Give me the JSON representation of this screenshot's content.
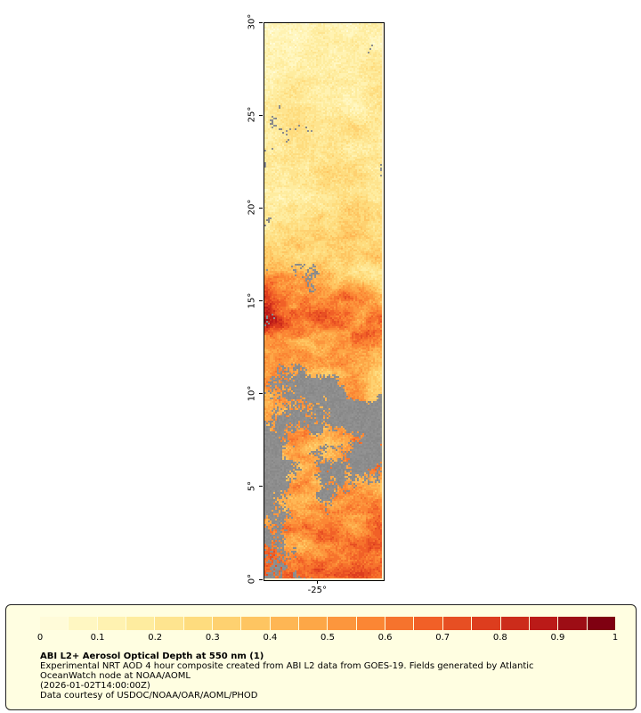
{
  "page": {
    "background": "#ffffff"
  },
  "map": {
    "lat_range": [
      0,
      30
    ],
    "lat_ticks": [
      {
        "label": "30°",
        "lat": 30
      },
      {
        "label": "25°",
        "lat": 25
      },
      {
        "label": "20°",
        "lat": 20
      },
      {
        "label": "15°",
        "lat": 15
      },
      {
        "label": "10°",
        "lat": 10
      },
      {
        "label": "5°",
        "lat": 5
      },
      {
        "label": "0°",
        "lat": 0
      }
    ],
    "lon_ticks": [
      {
        "label": "-25°",
        "frac": 0.45
      }
    ]
  },
  "legend": {
    "title": "ABI L2+ Aerosol Optical Depth at 550 nm (1)",
    "lines": [
      "Experimental NRT AOD 4 hour composite created from ABI L2 data from GOES-19. Fields generated by Atlantic",
      "OceanWatch node at NOAA/AOML",
      "(2026-01-02T14:00:00Z)",
      "Data courtesy of USDOC/NOAA/OAR/AOML/PHOD"
    ],
    "background": "#fffee1",
    "colorbar": {
      "ticks": [
        "0",
        "0.1",
        "0.2",
        "0.3",
        "0.4",
        "0.5",
        "0.6",
        "0.7",
        "0.8",
        "0.9",
        "1"
      ],
      "min": 0,
      "max": 1,
      "segments": 20
    }
  },
  "chart_data": {
    "type": "heatmap",
    "title": "ABI L2+ Aerosol Optical Depth at 550 nm (1)",
    "variable": "Aerosol Optical Depth at 550 nm",
    "value_range": [
      0,
      1
    ],
    "lat_range": [
      0,
      30
    ],
    "lon_tick": -25,
    "missing_color": "#8d8d8d",
    "colormap": [
      {
        "v": 0.0,
        "color": "#fffff0"
      },
      {
        "v": 0.1,
        "color": "#fff7c2"
      },
      {
        "v": 0.2,
        "color": "#feec9f"
      },
      {
        "v": 0.3,
        "color": "#fedc7e"
      },
      {
        "v": 0.4,
        "color": "#fec561"
      },
      {
        "v": 0.5,
        "color": "#fda747"
      },
      {
        "v": 0.6,
        "color": "#fb8634"
      },
      {
        "v": 0.7,
        "color": "#f16027"
      },
      {
        "v": 0.8,
        "color": "#dd3d1e"
      },
      {
        "v": 0.9,
        "color": "#bb1a18"
      },
      {
        "v": 1.0,
        "color": "#7f0011"
      }
    ],
    "bands": [
      {
        "lat": [
          28.5,
          30.0
        ],
        "aod": [
          0.17,
          0.15
        ],
        "amp": 0.1,
        "gray": [
          0.0,
          0.22
        ]
      },
      {
        "lat": [
          26.5,
          28.5
        ],
        "aod": [
          0.18,
          0.2
        ],
        "amp": 0.13,
        "gray": [
          0.15,
          0.1
        ]
      },
      {
        "lat": [
          23.5,
          26.5
        ],
        "aod": [
          0.2,
          0.22
        ],
        "amp": 0.12,
        "gray": [
          0.02,
          0.05
        ]
      },
      {
        "lat": [
          20.3,
          23.5
        ],
        "aod": [
          0.22,
          0.25
        ],
        "amp": 0.14,
        "gray": [
          0.18,
          0.08
        ]
      },
      {
        "lat": [
          17.5,
          20.3
        ],
        "aod": [
          0.28,
          0.27
        ],
        "amp": 0.16,
        "gray": [
          0.02,
          0.02
        ]
      },
      {
        "lat": [
          16.0,
          17.5
        ],
        "aod": [
          0.38,
          0.33
        ],
        "amp": 0.2,
        "gray": [
          0.02,
          0.06
        ]
      },
      {
        "lat": [
          14.5,
          16.0
        ],
        "aod": [
          0.75,
          0.48
        ],
        "amp": 0.28,
        "gray": [
          0.12,
          0.1
        ]
      },
      {
        "lat": [
          13.0,
          14.5
        ],
        "aod": [
          0.82,
          0.5
        ],
        "amp": 0.28,
        "gray": [
          0.04,
          0.02
        ]
      },
      {
        "lat": [
          11.5,
          13.0
        ],
        "aod": [
          0.5,
          0.45
        ],
        "amp": 0.22,
        "gray": [
          0.03,
          0.02
        ]
      },
      {
        "lat": [
          10.5,
          11.5
        ],
        "aod": [
          0.45,
          0.42
        ],
        "amp": 0.22,
        "gray": [
          0.35,
          0.18
        ]
      },
      {
        "lat": [
          8.5,
          10.5
        ],
        "aod": [
          0.5,
          0.46
        ],
        "amp": 0.26,
        "gray": [
          0.8,
          0.45
        ]
      },
      {
        "lat": [
          6.5,
          8.5
        ],
        "aod": [
          0.45,
          0.55
        ],
        "amp": 0.26,
        "gray": [
          0.72,
          0.4
        ]
      },
      {
        "lat": [
          4.5,
          6.5
        ],
        "aod": [
          0.4,
          0.5
        ],
        "amp": 0.26,
        "gray": [
          0.85,
          0.5
        ]
      },
      {
        "lat": [
          2.5,
          4.5
        ],
        "aod": [
          0.52,
          0.6
        ],
        "amp": 0.27,
        "gray": [
          0.45,
          0.22
        ]
      },
      {
        "lat": [
          0.0,
          2.5
        ],
        "aod": [
          0.66,
          0.6
        ],
        "amp": 0.27,
        "gray": [
          0.1,
          0.08
        ]
      }
    ]
  }
}
